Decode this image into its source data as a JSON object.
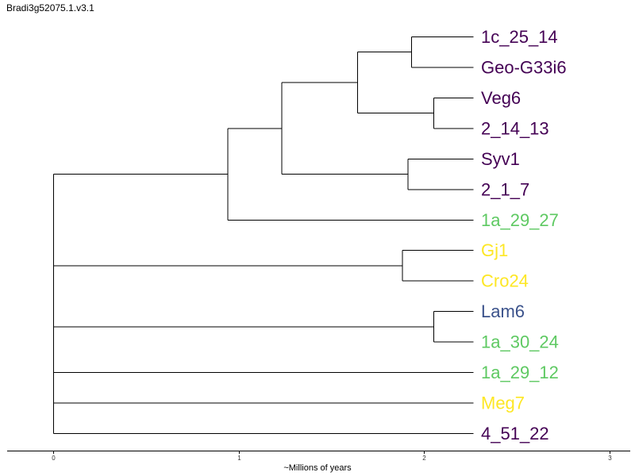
{
  "title": "Bradi3g52075.1.v3.1",
  "axis": {
    "title": "~Millions of years",
    "ticks": [
      "0",
      "1",
      "2",
      "3"
    ],
    "range": [
      0,
      3
    ]
  },
  "colors": {
    "purple": "#440154",
    "green": "#5ec962",
    "yellow": "#fde725",
    "blue": "#3b528b"
  },
  "tree": {
    "name": "root",
    "age": 0,
    "children": [
      {
        "name": "c1",
        "age": 0.94,
        "children": [
          {
            "name": "c2",
            "age": 1.23,
            "children": [
              {
                "name": "c3",
                "age": 1.64,
                "children": [
                  {
                    "name": "c4",
                    "age": 1.93,
                    "children": [
                      {
                        "label": "1c_25_14",
                        "color": "purple"
                      },
                      {
                        "label": "Geo-G33i6",
                        "color": "purple"
                      }
                    ]
                  },
                  {
                    "name": "c5",
                    "age": 2.05,
                    "children": [
                      {
                        "label": "Veg6",
                        "color": "purple"
                      },
                      {
                        "label": "2_14_13",
                        "color": "purple"
                      }
                    ]
                  }
                ]
              },
              {
                "name": "c6",
                "age": 1.91,
                "children": [
                  {
                    "label": "Syv1",
                    "color": "purple"
                  },
                  {
                    "label": "2_1_7",
                    "color": "purple"
                  }
                ]
              }
            ]
          },
          {
            "label": "1a_29_27",
            "color": "green"
          }
        ]
      },
      {
        "name": "c7",
        "age": 1.88,
        "children": [
          {
            "label": "Gj1",
            "color": "yellow"
          },
          {
            "label": "Cro24",
            "color": "yellow"
          }
        ]
      },
      {
        "name": "c8",
        "age": 2.05,
        "children": [
          {
            "label": "Lam6",
            "color": "blue"
          },
          {
            "label": "1a_30_24",
            "color": "green"
          }
        ]
      },
      {
        "label": "1a_29_12",
        "color": "green"
      },
      {
        "label": "Meg7",
        "color": "yellow"
      },
      {
        "label": "4_51_22",
        "color": "purple"
      }
    ]
  }
}
